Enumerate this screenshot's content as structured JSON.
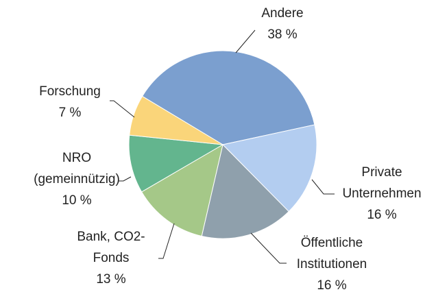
{
  "chart_data": {
    "type": "pie",
    "categories": [
      "Andere",
      "Private\nUnternehmen",
      "Öffentliche\nInstitutionen",
      "Bank, CO2-\nFonds",
      "NRO\n(gemeinnützig)",
      "Forschung"
    ],
    "values": [
      38,
      16,
      16,
      13,
      10,
      7
    ],
    "value_labels": [
      "38 %",
      "16 %",
      "16 %",
      "13 %",
      "10 %",
      "7 %"
    ],
    "colors": [
      "#7b9fcf",
      "#b3cdf0",
      "#8fa0ac",
      "#a5c888",
      "#63b58e",
      "#fad57a"
    ]
  }
}
